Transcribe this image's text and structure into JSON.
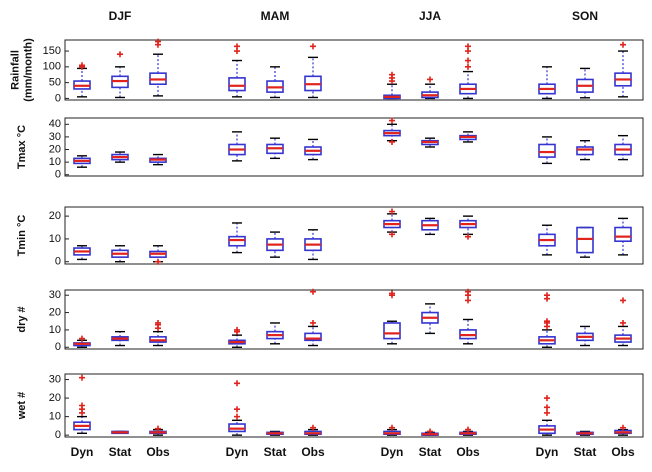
{
  "chart_data": [
    {
      "type": "box",
      "ylabel": [
        "Rainfall",
        "(mm/month)"
      ],
      "ylim": [
        -5,
        185
      ],
      "yticks": [
        0,
        50,
        100,
        150
      ],
      "groups": [
        "DJF",
        "MAM",
        "JJA",
        "SON"
      ],
      "box_color": "#3434d0",
      "median_color": "#e0231c",
      "flier_color": "#e0231c",
      "boxes": [
        {
          "whislo": 5,
          "q1": 30,
          "median": 40,
          "q3": 55,
          "whishi": 95,
          "fliers": [
            100,
            105
          ]
        },
        {
          "whislo": 3,
          "q1": 35,
          "median": 55,
          "q3": 70,
          "whishi": 100,
          "fliers": [
            140
          ]
        },
        {
          "whislo": 8,
          "q1": 45,
          "median": 60,
          "q3": 80,
          "whishi": 140,
          "fliers": [
            170,
            180
          ]
        },
        {
          "whislo": 5,
          "q1": 25,
          "median": 40,
          "q3": 65,
          "whishi": 120,
          "fliers": [
            150,
            165
          ]
        },
        {
          "whislo": 3,
          "q1": 20,
          "median": 35,
          "q3": 55,
          "whishi": 100,
          "fliers": []
        },
        {
          "whislo": 3,
          "q1": 25,
          "median": 45,
          "q3": 70,
          "whishi": 130,
          "fliers": [
            165
          ]
        },
        {
          "whislo": 0,
          "q1": 0,
          "median": 5,
          "q3": 10,
          "whishi": 45,
          "fliers": [
            55,
            65,
            75
          ]
        },
        {
          "whislo": 0,
          "q1": 3,
          "median": 10,
          "q3": 20,
          "whishi": 45,
          "fliers": [
            60
          ]
        },
        {
          "whislo": 0,
          "q1": 15,
          "median": 30,
          "q3": 45,
          "whishi": 85,
          "fliers": [
            100,
            120,
            150,
            165
          ]
        },
        {
          "whislo": 0,
          "q1": 15,
          "median": 30,
          "q3": 45,
          "whishi": 100,
          "fliers": []
        },
        {
          "whislo": 2,
          "q1": 20,
          "median": 40,
          "q3": 60,
          "whishi": 95,
          "fliers": []
        },
        {
          "whislo": 5,
          "q1": 40,
          "median": 60,
          "q3": 80,
          "whishi": 150,
          "fliers": [
            170
          ]
        }
      ]
    },
    {
      "type": "box",
      "ylabel": [
        "Tmax °C"
      ],
      "ylim": [
        -1,
        45
      ],
      "yticks": [
        0,
        10,
        20,
        30,
        40
      ],
      "box_color": "#3434d0",
      "median_color": "#e0231c",
      "flier_color": "#e0231c",
      "boxes": [
        {
          "whislo": 6,
          "q1": 9,
          "median": 11,
          "q3": 13,
          "whishi": 15,
          "fliers": []
        },
        {
          "whislo": 10,
          "q1": 12,
          "median": 14,
          "q3": 16,
          "whishi": 18,
          "fliers": []
        },
        {
          "whislo": 8,
          "q1": 10,
          "median": 12,
          "q3": 13,
          "whishi": 16,
          "fliers": []
        },
        {
          "whislo": 11,
          "q1": 16,
          "median": 20,
          "q3": 24,
          "whishi": 34,
          "fliers": []
        },
        {
          "whislo": 13,
          "q1": 17,
          "median": 21,
          "q3": 24,
          "whishi": 29,
          "fliers": []
        },
        {
          "whislo": 12,
          "q1": 16,
          "median": 19,
          "q3": 22,
          "whishi": 28,
          "fliers": []
        },
        {
          "whislo": 27,
          "q1": 31,
          "median": 33,
          "q3": 35,
          "whishi": 40,
          "fliers": [
            26,
            43
          ]
        },
        {
          "whislo": 22,
          "q1": 24,
          "median": 26,
          "q3": 27,
          "whishi": 29,
          "fliers": []
        },
        {
          "whislo": 26,
          "q1": 28,
          "median": 30,
          "q3": 31,
          "whishi": 34,
          "fliers": []
        },
        {
          "whislo": 9,
          "q1": 14,
          "median": 18,
          "q3": 24,
          "whishi": 30,
          "fliers": []
        },
        {
          "whislo": 12,
          "q1": 16,
          "median": 20,
          "q3": 22,
          "whishi": 27,
          "fliers": []
        },
        {
          "whislo": 12,
          "q1": 16,
          "median": 20,
          "q3": 24,
          "whishi": 31,
          "fliers": []
        }
      ]
    },
    {
      "type": "box",
      "ylabel": [
        "Tmin °C"
      ],
      "ylim": [
        -1,
        24
      ],
      "yticks": [
        0,
        10,
        20
      ],
      "box_color": "#3434d0",
      "median_color": "#e0231c",
      "flier_color": "#e0231c",
      "boxes": [
        {
          "whislo": 1,
          "q1": 3,
          "median": 4.5,
          "q3": 6,
          "whishi": 7,
          "fliers": []
        },
        {
          "whislo": 0,
          "q1": 2,
          "median": 3.5,
          "q3": 5,
          "whishi": 7,
          "fliers": []
        },
        {
          "whislo": 0,
          "q1": 2,
          "median": 3.5,
          "q3": 4.5,
          "whishi": 7,
          "fliers": [
            0
          ]
        },
        {
          "whislo": 4,
          "q1": 7,
          "median": 9.5,
          "q3": 11,
          "whishi": 17,
          "fliers": []
        },
        {
          "whislo": 2,
          "q1": 5,
          "median": 7.5,
          "q3": 10,
          "whishi": 13,
          "fliers": []
        },
        {
          "whislo": 1,
          "q1": 5,
          "median": 7.5,
          "q3": 10,
          "whishi": 14,
          "fliers": []
        },
        {
          "whislo": 13,
          "q1": 15,
          "median": 16.5,
          "q3": 18,
          "whishi": 21,
          "fliers": [
            12,
            22
          ]
        },
        {
          "whislo": 12,
          "q1": 14,
          "median": 16,
          "q3": 18,
          "whishi": 19,
          "fliers": []
        },
        {
          "whislo": 12,
          "q1": 15,
          "median": 16.5,
          "q3": 18,
          "whishi": 20,
          "fliers": [
            11
          ]
        },
        {
          "whislo": 3,
          "q1": 7,
          "median": 9.5,
          "q3": 12,
          "whishi": 16,
          "fliers": []
        },
        {
          "whislo": 2,
          "q1": 4,
          "median": 10,
          "q3": 15,
          "whishi": 15,
          "fliers": []
        },
        {
          "whislo": 3,
          "q1": 9,
          "median": 11,
          "q3": 15,
          "whishi": 19,
          "fliers": []
        }
      ]
    },
    {
      "type": "box",
      "ylabel": [
        "dry #"
      ],
      "ylim": [
        -1,
        33
      ],
      "yticks": [
        0,
        10,
        20,
        30
      ],
      "box_color": "#3434d0",
      "median_color": "#e0231c",
      "flier_color": "#e0231c",
      "boxes": [
        {
          "whislo": 0,
          "q1": 1,
          "median": 2,
          "q3": 2.5,
          "whishi": 4,
          "fliers": [
            5
          ]
        },
        {
          "whislo": 1,
          "q1": 4,
          "median": 5,
          "q3": 6,
          "whishi": 9,
          "fliers": []
        },
        {
          "whislo": 1,
          "q1": 3,
          "median": 4,
          "q3": 6,
          "whishi": 9,
          "fliers": [
            11,
            13,
            14
          ]
        },
        {
          "whislo": 0,
          "q1": 2,
          "median": 3,
          "q3": 4,
          "whishi": 7,
          "fliers": [
            9,
            10
          ]
        },
        {
          "whislo": 2,
          "q1": 5,
          "median": 7,
          "q3": 9,
          "whishi": 14,
          "fliers": []
        },
        {
          "whislo": 1,
          "q1": 4,
          "median": 5,
          "q3": 8,
          "whishi": 12,
          "fliers": [
            14,
            32
          ]
        },
        {
          "whislo": 2,
          "q1": 5,
          "median": 8,
          "q3": 14,
          "whishi": 15,
          "fliers": [
            30,
            31
          ]
        },
        {
          "whislo": 8,
          "q1": 14,
          "median": 17,
          "q3": 20,
          "whishi": 25,
          "fliers": []
        },
        {
          "whislo": 2,
          "q1": 5,
          "median": 7,
          "q3": 10,
          "whishi": 16,
          "fliers": [
            27,
            30,
            32
          ]
        },
        {
          "whislo": 0,
          "q1": 2,
          "median": 4,
          "q3": 6,
          "whishi": 10,
          "fliers": [
            12,
            14,
            15,
            28,
            30
          ]
        },
        {
          "whislo": 1,
          "q1": 4,
          "median": 6,
          "q3": 8,
          "whishi": 12,
          "fliers": []
        },
        {
          "whislo": 1,
          "q1": 3,
          "median": 5,
          "q3": 7,
          "whishi": 12,
          "fliers": [
            14,
            27
          ]
        }
      ]
    },
    {
      "type": "box",
      "ylabel": [
        "wet #"
      ],
      "ylim": [
        -1,
        33
      ],
      "yticks": [
        0,
        10,
        20,
        30
      ],
      "categories": [
        "Dyn",
        "Stat",
        "Obs"
      ],
      "box_color": "#3434d0",
      "median_color": "#e0231c",
      "flier_color": "#e0231c",
      "boxes": [
        {
          "whislo": 1,
          "q1": 3,
          "median": 5,
          "q3": 7,
          "whishi": 10,
          "fliers": [
            12,
            14,
            16,
            31
          ]
        },
        {
          "whislo": 1,
          "q1": 1,
          "median": 1.5,
          "q3": 2,
          "whishi": 2,
          "fliers": []
        },
        {
          "whislo": 0,
          "q1": 1,
          "median": 1.5,
          "q3": 2,
          "whishi": 3,
          "fliers": [
            3.5
          ]
        },
        {
          "whislo": 0,
          "q1": 2,
          "median": 3.5,
          "q3": 6,
          "whishi": 8,
          "fliers": [
            10,
            14,
            28
          ]
        },
        {
          "whislo": 0,
          "q1": 0.5,
          "median": 1,
          "q3": 1.5,
          "whishi": 2,
          "fliers": []
        },
        {
          "whislo": 0,
          "q1": 0.5,
          "median": 1,
          "q3": 2,
          "whishi": 3,
          "fliers": [
            4
          ]
        },
        {
          "whislo": 0,
          "q1": 0.5,
          "median": 1,
          "q3": 2,
          "whishi": 3,
          "fliers": [
            4
          ]
        },
        {
          "whislo": 0,
          "q1": 0,
          "median": 0.5,
          "q3": 1,
          "whishi": 1.5,
          "fliers": [
            2
          ]
        },
        {
          "whislo": 0,
          "q1": 0.5,
          "median": 1,
          "q3": 1.5,
          "whishi": 2,
          "fliers": [
            3
          ]
        },
        {
          "whislo": 0,
          "q1": 1,
          "median": 3,
          "q3": 5,
          "whishi": 8,
          "fliers": [
            12,
            15,
            20
          ]
        },
        {
          "whislo": 0,
          "q1": 0.5,
          "median": 1,
          "q3": 1.5,
          "whishi": 2,
          "fliers": []
        },
        {
          "whislo": 0,
          "q1": 1,
          "median": 1.5,
          "q3": 2.5,
          "whishi": 3,
          "fliers": [
            4
          ]
        }
      ]
    }
  ]
}
